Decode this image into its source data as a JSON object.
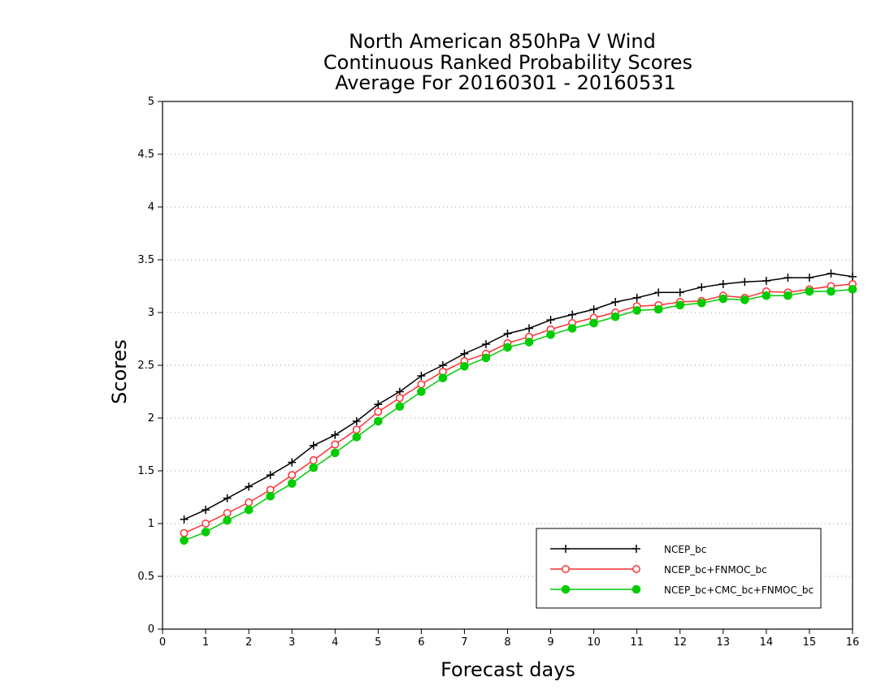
{
  "chart_data": {
    "type": "line",
    "title": [
      "North American 850hPa V Wind",
      "Continuous Ranked Probability Scores",
      "Average For 20160301 - 20160531"
    ],
    "xlabel": "Forecast days",
    "ylabel": "Scores",
    "xlim": [
      0,
      16
    ],
    "ylim": [
      0,
      5
    ],
    "xticks": [
      "0",
      "1",
      "2",
      "3",
      "4",
      "5",
      "6",
      "7",
      "8",
      "9",
      "10",
      "11",
      "12",
      "13",
      "14",
      "15",
      "16"
    ],
    "yticks": [
      "0",
      "0.5",
      "1",
      "1.5",
      "2",
      "2.5",
      "3",
      "3.5",
      "4",
      "4.5",
      "5"
    ],
    "grid": "dotted horizontal",
    "legend_position": "bottom-right",
    "x": [
      0.5,
      1,
      1.5,
      2,
      2.5,
      3,
      3.5,
      4,
      4.5,
      5,
      5.5,
      6,
      6.5,
      7,
      7.5,
      8,
      8.5,
      9,
      9.5,
      10,
      10.5,
      11,
      11.5,
      12,
      12.5,
      13,
      13.5,
      14,
      14.5,
      15,
      15.5,
      16
    ],
    "series": [
      {
        "name": "NCEP_bc",
        "color": "#000000",
        "marker": "plus",
        "values": [
          1.04,
          1.13,
          1.24,
          1.35,
          1.46,
          1.58,
          1.74,
          1.84,
          1.97,
          2.13,
          2.25,
          2.4,
          2.5,
          2.61,
          2.7,
          2.8,
          2.85,
          2.93,
          2.98,
          3.03,
          3.1,
          3.14,
          3.19,
          3.19,
          3.24,
          3.27,
          3.29,
          3.3,
          3.33,
          3.33,
          3.37,
          3.34
        ]
      },
      {
        "name": "NCEP_bc+FNMOC_bc",
        "color": "#ff3030",
        "marker": "open-circle",
        "values": [
          0.91,
          1.0,
          1.1,
          1.2,
          1.32,
          1.46,
          1.6,
          1.75,
          1.89,
          2.06,
          2.19,
          2.32,
          2.44,
          2.54,
          2.61,
          2.71,
          2.77,
          2.84,
          2.9,
          2.95,
          3.0,
          3.06,
          3.07,
          3.1,
          3.11,
          3.16,
          3.14,
          3.2,
          3.19,
          3.22,
          3.25,
          3.27
        ]
      },
      {
        "name": "NCEP_bc+CMC_bc+FNMOC_bc",
        "color": "#00cc00",
        "marker": "filled-circle",
        "values": [
          0.84,
          0.92,
          1.03,
          1.13,
          1.26,
          1.38,
          1.53,
          1.67,
          1.82,
          1.97,
          2.11,
          2.25,
          2.38,
          2.49,
          2.57,
          2.67,
          2.72,
          2.79,
          2.85,
          2.9,
          2.96,
          3.02,
          3.03,
          3.07,
          3.09,
          3.13,
          3.12,
          3.16,
          3.16,
          3.2,
          3.2,
          3.22
        ]
      }
    ]
  }
}
